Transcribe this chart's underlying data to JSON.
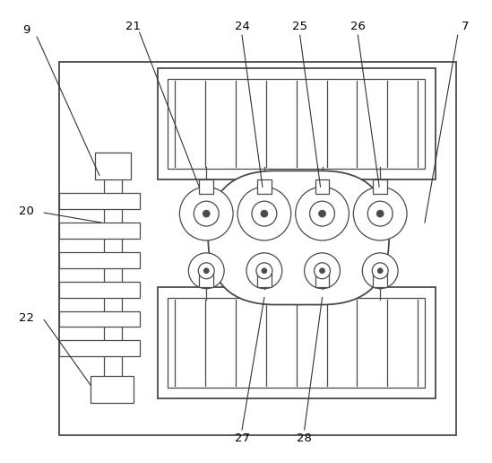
{
  "bg_color": "#ffffff",
  "line_color": "#4a4a4a",
  "lw_main": 1.3,
  "lw_thin": 0.9,
  "fig_width": 5.49,
  "fig_height": 5.16,
  "dpi": 100
}
